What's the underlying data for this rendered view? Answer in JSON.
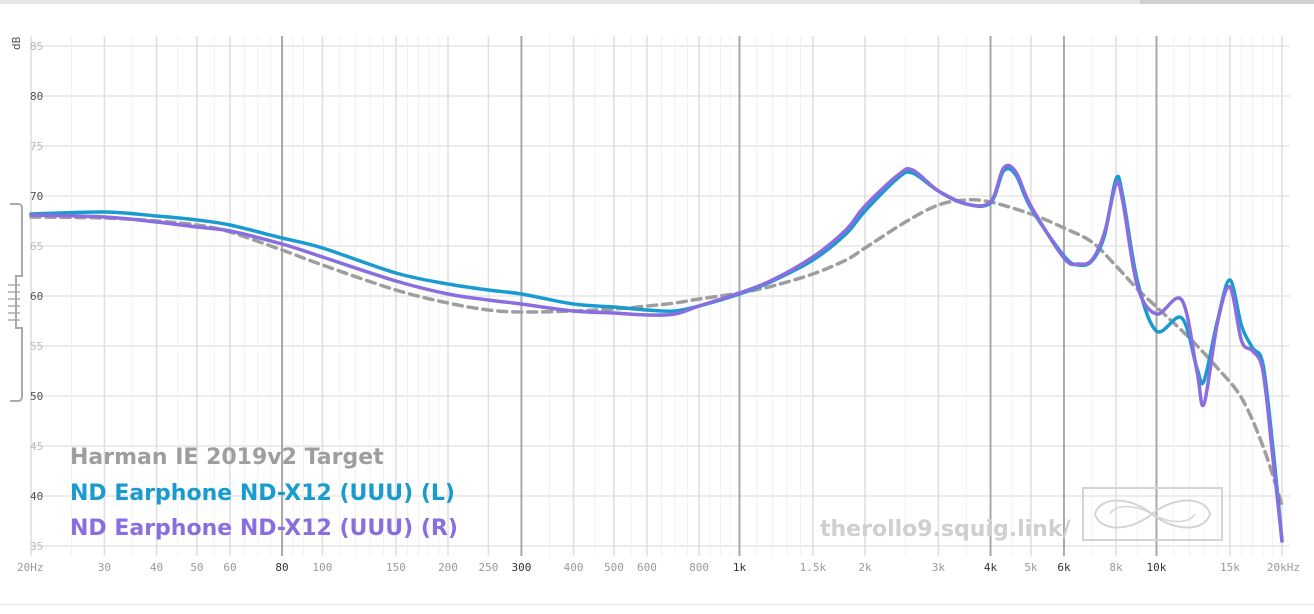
{
  "chart_data": {
    "type": "line",
    "ylabel": "dB",
    "xunit": "Hz",
    "xscale": "log",
    "xlim": [
      20,
      20000
    ],
    "ylim": [
      35,
      86
    ],
    "y_ticks": [
      85,
      80,
      75,
      70,
      65,
      60,
      55,
      50,
      45,
      40,
      35
    ],
    "x_ticks": [
      {
        "v": 20,
        "label": "20Hz",
        "major": false
      },
      {
        "v": 30,
        "label": "30",
        "major": false
      },
      {
        "v": 40,
        "label": "40",
        "major": false
      },
      {
        "v": 50,
        "label": "50",
        "major": false
      },
      {
        "v": 60,
        "label": "60",
        "major": false
      },
      {
        "v": 80,
        "label": "80",
        "major": true
      },
      {
        "v": 100,
        "label": "100",
        "major": false
      },
      {
        "v": 150,
        "label": "150",
        "major": false
      },
      {
        "v": 200,
        "label": "200",
        "major": false
      },
      {
        "v": 250,
        "label": "250",
        "major": false
      },
      {
        "v": 300,
        "label": "300",
        "major": true
      },
      {
        "v": 400,
        "label": "400",
        "major": false
      },
      {
        "v": 500,
        "label": "500",
        "major": false
      },
      {
        "v": 600,
        "label": "600",
        "major": false
      },
      {
        "v": 800,
        "label": "800",
        "major": false
      },
      {
        "v": 1000,
        "label": "1k",
        "major": true
      },
      {
        "v": 1500,
        "label": "1.5k",
        "major": false
      },
      {
        "v": 2000,
        "label": "2k",
        "major": false
      },
      {
        "v": 3000,
        "label": "3k",
        "major": false
      },
      {
        "v": 4000,
        "label": "4k",
        "major": true
      },
      {
        "v": 5000,
        "label": "5k",
        "major": false
      },
      {
        "v": 6000,
        "label": "6k",
        "major": true
      },
      {
        "v": 8000,
        "label": "8k",
        "major": false
      },
      {
        "v": 10000,
        "label": "10k",
        "major": true
      },
      {
        "v": 15000,
        "label": "15k",
        "major": false
      },
      {
        "v": 20000,
        "label": "20kHz",
        "major": false
      }
    ],
    "minor_grid": [
      25,
      35,
      45,
      55,
      65,
      70,
      75,
      85,
      90,
      110,
      120,
      130,
      140,
      160,
      170,
      180,
      190,
      350,
      450,
      550,
      650,
      700,
      750,
      850,
      900,
      950,
      1100,
      1200,
      1300,
      1400,
      2500,
      3500,
      4500,
      7000,
      9000,
      11000,
      12000,
      13000,
      14000,
      16000,
      17000,
      18000,
      19000
    ],
    "series": [
      {
        "name": "Harman IE 2019v2 Target",
        "color": "#9e9e9e",
        "style": "dashed",
        "points": [
          [
            20,
            67.9
          ],
          [
            30,
            67.8
          ],
          [
            40,
            67.5
          ],
          [
            50,
            67.1
          ],
          [
            60,
            66.4
          ],
          [
            80,
            64.6
          ],
          [
            100,
            63.1
          ],
          [
            150,
            60.6
          ],
          [
            200,
            59.3
          ],
          [
            250,
            58.6
          ],
          [
            300,
            58.4
          ],
          [
            400,
            58.5
          ],
          [
            500,
            58.7
          ],
          [
            600,
            59
          ],
          [
            700,
            59.3
          ],
          [
            800,
            59.7
          ],
          [
            1000,
            60.3
          ],
          [
            1200,
            61
          ],
          [
            1500,
            62.2
          ],
          [
            1800,
            63.6
          ],
          [
            2000,
            64.8
          ],
          [
            2500,
            67.4
          ],
          [
            3000,
            69.1
          ],
          [
            3500,
            69.6
          ],
          [
            4000,
            69.4
          ],
          [
            5000,
            68.2
          ],
          [
            6000,
            66.8
          ],
          [
            7000,
            65.4
          ],
          [
            8000,
            63
          ],
          [
            9000,
            60.7
          ],
          [
            10000,
            58.9
          ],
          [
            12000,
            55.8
          ],
          [
            14000,
            52.8
          ],
          [
            16000,
            49.8
          ],
          [
            18000,
            45
          ],
          [
            20000,
            39.1
          ]
        ]
      },
      {
        "name": "ND Earphone ND-X12 (UUU) (L)",
        "color": "#1a9bcf",
        "style": "solid",
        "points": [
          [
            20,
            68.2
          ],
          [
            30,
            68.4
          ],
          [
            40,
            68
          ],
          [
            50,
            67.6
          ],
          [
            60,
            67.1
          ],
          [
            80,
            65.8
          ],
          [
            100,
            64.8
          ],
          [
            150,
            62.3
          ],
          [
            200,
            61.2
          ],
          [
            250,
            60.6
          ],
          [
            300,
            60.2
          ],
          [
            400,
            59.2
          ],
          [
            500,
            58.9
          ],
          [
            600,
            58.6
          ],
          [
            700,
            58.5
          ],
          [
            800,
            59
          ],
          [
            1000,
            60.2
          ],
          [
            1200,
            61.5
          ],
          [
            1500,
            63.6
          ],
          [
            1800,
            66.2
          ],
          [
            2000,
            68.5
          ],
          [
            2400,
            71.8
          ],
          [
            2600,
            72.3
          ],
          [
            3000,
            70.5
          ],
          [
            3500,
            69.2
          ],
          [
            4000,
            69.3
          ],
          [
            4300,
            72.5
          ],
          [
            4600,
            72.1
          ],
          [
            5000,
            68.8
          ],
          [
            6000,
            64
          ],
          [
            6500,
            63.1
          ],
          [
            7000,
            63.5
          ],
          [
            7500,
            66
          ],
          [
            8000,
            71.7
          ],
          [
            8300,
            70
          ],
          [
            9000,
            61.5
          ],
          [
            10000,
            56.5
          ],
          [
            11500,
            57.8
          ],
          [
            12500,
            52.8
          ],
          [
            13000,
            51.5
          ],
          [
            14000,
            57.5
          ],
          [
            15000,
            61.6
          ],
          [
            16000,
            57
          ],
          [
            17000,
            54.8
          ],
          [
            18000,
            53.2
          ],
          [
            19000,
            45
          ],
          [
            20000,
            35.5
          ]
        ]
      },
      {
        "name": "ND Earphone ND-X12 (UUU) (R)",
        "color": "#8a6ee0",
        "style": "solid",
        "points": [
          [
            20,
            68.1
          ],
          [
            30,
            67.9
          ],
          [
            40,
            67.4
          ],
          [
            50,
            66.9
          ],
          [
            60,
            66.5
          ],
          [
            80,
            65.2
          ],
          [
            100,
            63.9
          ],
          [
            150,
            61.5
          ],
          [
            200,
            60.2
          ],
          [
            250,
            59.6
          ],
          [
            300,
            59.2
          ],
          [
            400,
            58.5
          ],
          [
            500,
            58.3
          ],
          [
            600,
            58.1
          ],
          [
            700,
            58.2
          ],
          [
            800,
            59
          ],
          [
            1000,
            60.3
          ],
          [
            1200,
            61.6
          ],
          [
            1500,
            63.9
          ],
          [
            1800,
            66.6
          ],
          [
            2000,
            69
          ],
          [
            2400,
            72.1
          ],
          [
            2600,
            72.6
          ],
          [
            3000,
            70.5
          ],
          [
            3500,
            69.2
          ],
          [
            4000,
            69.4
          ],
          [
            4300,
            72.8
          ],
          [
            4600,
            72.4
          ],
          [
            5000,
            69
          ],
          [
            6000,
            63.8
          ],
          [
            6500,
            63.2
          ],
          [
            7000,
            63.6
          ],
          [
            7500,
            66.3
          ],
          [
            8000,
            71.2
          ],
          [
            8300,
            69.5
          ],
          [
            9000,
            61
          ],
          [
            10000,
            58.2
          ],
          [
            11500,
            59.6
          ],
          [
            12500,
            52.5
          ],
          [
            13000,
            49.2
          ],
          [
            14000,
            57.3
          ],
          [
            15000,
            60.9
          ],
          [
            16000,
            55.5
          ],
          [
            17000,
            54.5
          ],
          [
            18000,
            52.5
          ],
          [
            19000,
            44
          ],
          [
            20000,
            35.5
          ]
        ]
      }
    ]
  },
  "legend": [
    {
      "label": "Harman IE 2019v2 Target",
      "color": "#9e9e9e"
    },
    {
      "label": "ND Earphone ND-X12 (UUU) (L)",
      "color": "#1a9bcf"
    },
    {
      "label": "ND Earphone ND-X12 (UUU) (R)",
      "color": "#8a6ee0"
    }
  ],
  "watermark": "therollo9.squig.link/"
}
